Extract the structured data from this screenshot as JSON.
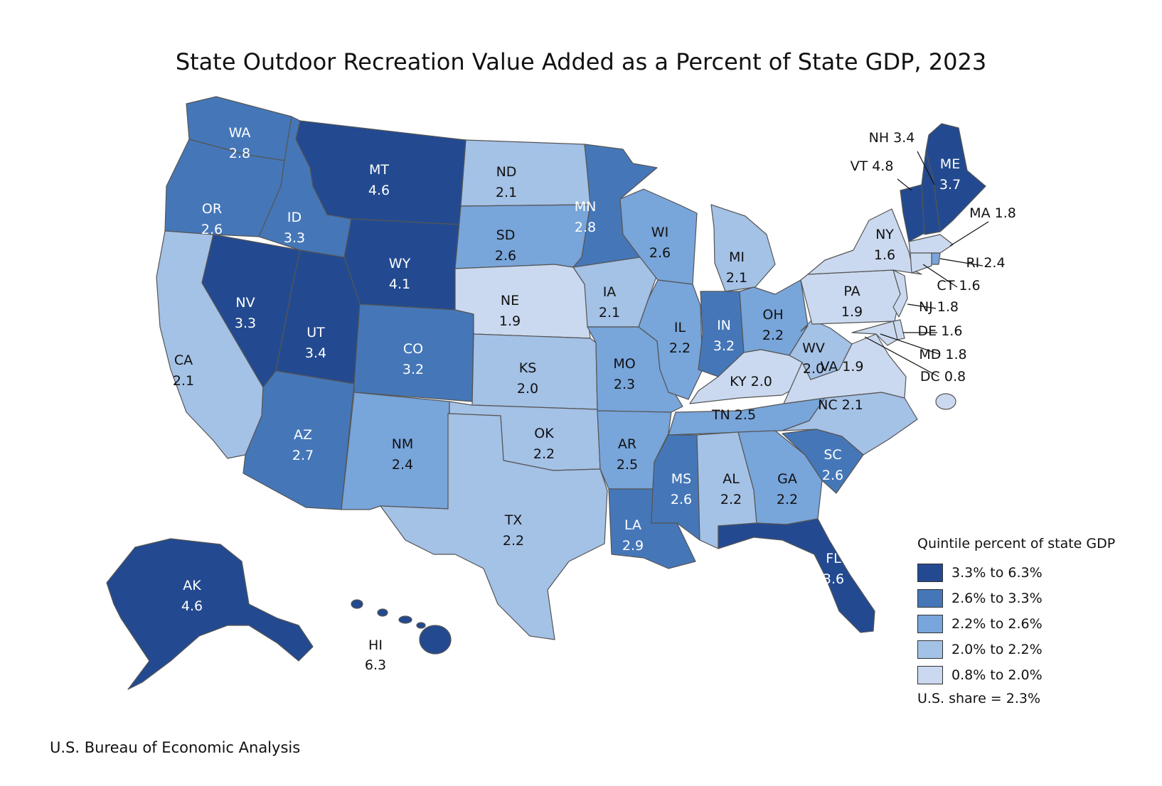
{
  "title": "State Outdoor Recreation Value Added as a Percent of State GDP, 2023",
  "source": "U.S. Bureau of Economic Analysis",
  "legend": {
    "title": "Quintile percent of state GDP",
    "classes": [
      {
        "label": "3.3% to 6.3%",
        "color": "#234a90"
      },
      {
        "label": "2.6% to 3.3%",
        "color": "#4577b8"
      },
      {
        "label": "2.2% to 2.6%",
        "color": "#78a5da"
      },
      {
        "label": "2.0% to 2.2%",
        "color": "#a4c1e6"
      },
      {
        "label": "0.8% to 2.0%",
        "color": "#cad9ef"
      }
    ],
    "us_share": "U.S. share = 2.3%"
  },
  "states": [
    {
      "abbr": "WA",
      "value": "2.8",
      "class": 1
    },
    {
      "abbr": "OR",
      "value": "2.6",
      "class": 1
    },
    {
      "abbr": "CA",
      "value": "2.1",
      "class": 3
    },
    {
      "abbr": "NV",
      "value": "3.3",
      "class": 0
    },
    {
      "abbr": "ID",
      "value": "3.3",
      "class": 1
    },
    {
      "abbr": "MT",
      "value": "4.6",
      "class": 0
    },
    {
      "abbr": "WY",
      "value": "4.1",
      "class": 0
    },
    {
      "abbr": "UT",
      "value": "3.4",
      "class": 0
    },
    {
      "abbr": "AZ",
      "value": "2.7",
      "class": 1
    },
    {
      "abbr": "CO",
      "value": "3.2",
      "class": 1
    },
    {
      "abbr": "NM",
      "value": "2.4",
      "class": 2
    },
    {
      "abbr": "ND",
      "value": "2.1",
      "class": 3
    },
    {
      "abbr": "SD",
      "value": "2.6",
      "class": 2
    },
    {
      "abbr": "NE",
      "value": "1.9",
      "class": 4
    },
    {
      "abbr": "KS",
      "value": "2.0",
      "class": 3
    },
    {
      "abbr": "OK",
      "value": "2.2",
      "class": 3
    },
    {
      "abbr": "TX",
      "value": "2.2",
      "class": 3
    },
    {
      "abbr": "MN",
      "value": "2.8",
      "class": 1
    },
    {
      "abbr": "IA",
      "value": "2.1",
      "class": 3
    },
    {
      "abbr": "MO",
      "value": "2.3",
      "class": 2
    },
    {
      "abbr": "AR",
      "value": "2.5",
      "class": 2
    },
    {
      "abbr": "LA",
      "value": "2.9",
      "class": 1
    },
    {
      "abbr": "WI",
      "value": "2.6",
      "class": 2
    },
    {
      "abbr": "IL",
      "value": "2.2",
      "class": 2
    },
    {
      "abbr": "MI",
      "value": "2.1",
      "class": 3
    },
    {
      "abbr": "IN",
      "value": "3.2",
      "class": 1
    },
    {
      "abbr": "OH",
      "value": "2.2",
      "class": 2
    },
    {
      "abbr": "KY",
      "value": "2.0",
      "class": 4
    },
    {
      "abbr": "TN",
      "value": "2.5",
      "class": 2
    },
    {
      "abbr": "MS",
      "value": "2.6",
      "class": 1
    },
    {
      "abbr": "AL",
      "value": "2.2",
      "class": 3
    },
    {
      "abbr": "GA",
      "value": "2.2",
      "class": 2
    },
    {
      "abbr": "FL",
      "value": "3.6",
      "class": 0
    },
    {
      "abbr": "SC",
      "value": "2.6",
      "class": 1
    },
    {
      "abbr": "NC",
      "value": "2.1",
      "class": 3
    },
    {
      "abbr": "VA",
      "value": "1.9",
      "class": 4
    },
    {
      "abbr": "WV",
      "value": "2.0",
      "class": 3
    },
    {
      "abbr": "PA",
      "value": "1.9",
      "class": 4
    },
    {
      "abbr": "NY",
      "value": "1.6",
      "class": 4
    },
    {
      "abbr": "VT",
      "value": "4.8",
      "class": 0
    },
    {
      "abbr": "NH",
      "value": "3.4",
      "class": 0
    },
    {
      "abbr": "ME",
      "value": "3.7",
      "class": 0
    },
    {
      "abbr": "MA",
      "value": "1.8",
      "class": 4
    },
    {
      "abbr": "RI",
      "value": "2.4",
      "class": 2
    },
    {
      "abbr": "CT",
      "value": "1.6",
      "class": 4
    },
    {
      "abbr": "NJ",
      "value": "1.8",
      "class": 4
    },
    {
      "abbr": "DE",
      "value": "1.6",
      "class": 4
    },
    {
      "abbr": "MD",
      "value": "1.8",
      "class": 4
    },
    {
      "abbr": "DC",
      "value": "0.8",
      "class": 4
    },
    {
      "abbr": "AK",
      "value": "4.6",
      "class": 0
    },
    {
      "abbr": "HI",
      "value": "6.3",
      "class": 0
    }
  ]
}
